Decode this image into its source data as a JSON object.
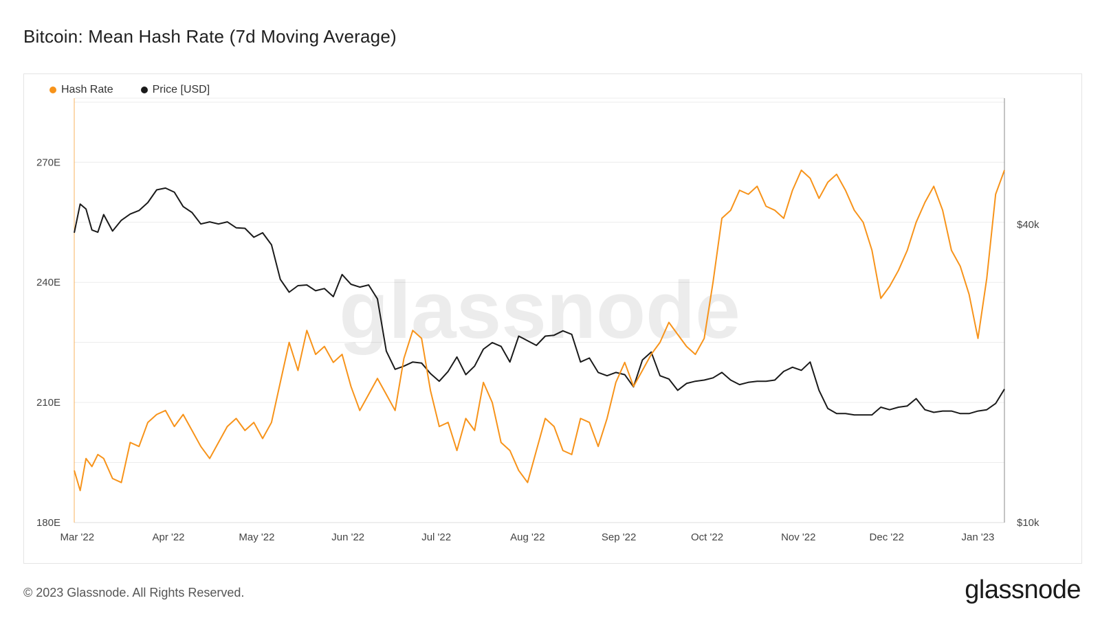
{
  "title": "Bitcoin: Mean Hash Rate (7d Moving Average)",
  "footer": "© 2023 Glassnode. All Rights Reserved.",
  "brand": "glassnode",
  "watermark": "glassnode",
  "colors": {
    "hash_rate": "#F7931A",
    "price": "#1a1a1a",
    "grid": "#ececec"
  },
  "chart_data": {
    "type": "line",
    "title": "Bitcoin: Mean Hash Rate (7d Moving Average)",
    "x_ticks": [
      "Mar '22",
      "Apr '22",
      "May '22",
      "Jun '22",
      "Jul '22",
      "Aug '22",
      "Sep '22",
      "Oct '22",
      "Nov '22",
      "Dec '22",
      "Jan '23"
    ],
    "y_left": {
      "ticks": [
        "180E",
        "210E",
        "240E",
        "270E"
      ],
      "range": [
        180,
        286
      ]
    },
    "y_right": {
      "ticks": [
        "$10k",
        "$40k"
      ],
      "scale": "log",
      "range": [
        10000,
        72000
      ]
    },
    "grid": true,
    "legend_position": "top-left",
    "series": [
      {
        "name": "Hash Rate",
        "axis": "left",
        "x": [
          "2022-02-28",
          "2022-03-02",
          "2022-03-04",
          "2022-03-06",
          "2022-03-08",
          "2022-03-10",
          "2022-03-13",
          "2022-03-16",
          "2022-03-19",
          "2022-03-22",
          "2022-03-25",
          "2022-03-28",
          "2022-03-31",
          "2022-04-03",
          "2022-04-06",
          "2022-04-09",
          "2022-04-12",
          "2022-04-15",
          "2022-04-18",
          "2022-04-21",
          "2022-04-24",
          "2022-04-27",
          "2022-04-30",
          "2022-05-03",
          "2022-05-06",
          "2022-05-09",
          "2022-05-12",
          "2022-05-15",
          "2022-05-18",
          "2022-05-21",
          "2022-05-24",
          "2022-05-27",
          "2022-05-30",
          "2022-06-02",
          "2022-06-05",
          "2022-06-08",
          "2022-06-11",
          "2022-06-14",
          "2022-06-17",
          "2022-06-20",
          "2022-06-23",
          "2022-06-26",
          "2022-06-29",
          "2022-07-02",
          "2022-07-05",
          "2022-07-08",
          "2022-07-11",
          "2022-07-14",
          "2022-07-17",
          "2022-07-20",
          "2022-07-23",
          "2022-07-26",
          "2022-07-29",
          "2022-08-01",
          "2022-08-04",
          "2022-08-07",
          "2022-08-10",
          "2022-08-13",
          "2022-08-16",
          "2022-08-19",
          "2022-08-22",
          "2022-08-25",
          "2022-08-28",
          "2022-08-31",
          "2022-09-03",
          "2022-09-06",
          "2022-09-09",
          "2022-09-12",
          "2022-09-15",
          "2022-09-18",
          "2022-09-21",
          "2022-09-24",
          "2022-09-27",
          "2022-09-30",
          "2022-10-03",
          "2022-10-06",
          "2022-10-09",
          "2022-10-12",
          "2022-10-15",
          "2022-10-18",
          "2022-10-21",
          "2022-10-24",
          "2022-10-27",
          "2022-10-30",
          "2022-11-02",
          "2022-11-05",
          "2022-11-08",
          "2022-11-11",
          "2022-11-14",
          "2022-11-17",
          "2022-11-20",
          "2022-11-23",
          "2022-11-26",
          "2022-11-29",
          "2022-12-02",
          "2022-12-05",
          "2022-12-08",
          "2022-12-11",
          "2022-12-14",
          "2022-12-17",
          "2022-12-20",
          "2022-12-23",
          "2022-12-26",
          "2022-12-29",
          "2023-01-01",
          "2023-01-04",
          "2023-01-07",
          "2023-01-10"
        ],
        "values": [
          193,
          188,
          196,
          194,
          197,
          196,
          191,
          190,
          200,
          199,
          205,
          207,
          208,
          204,
          207,
          203,
          199,
          196,
          200,
          204,
          206,
          203,
          205,
          201,
          205,
          215,
          225,
          218,
          228,
          222,
          224,
          220,
          222,
          214,
          208,
          212,
          216,
          212,
          208,
          221,
          228,
          226,
          213,
          204,
          205,
          198,
          206,
          203,
          215,
          210,
          200,
          198,
          193,
          190,
          198,
          206,
          204,
          198,
          197,
          206,
          205,
          199,
          206,
          215,
          220,
          214,
          218,
          222,
          225,
          230,
          227,
          224,
          222,
          226,
          240,
          256,
          258,
          263,
          262,
          264,
          259,
          258,
          256,
          263,
          268,
          266,
          261,
          265,
          267,
          263,
          258,
          255,
          248,
          236,
          239,
          243,
          248,
          255,
          260,
          264,
          258,
          248,
          244,
          237,
          226,
          241,
          262,
          268
        ]
      },
      {
        "name": "Price [USD]",
        "axis": "right",
        "x": [
          "2022-02-28",
          "2022-03-02",
          "2022-03-04",
          "2022-03-06",
          "2022-03-08",
          "2022-03-10",
          "2022-03-13",
          "2022-03-16",
          "2022-03-19",
          "2022-03-22",
          "2022-03-25",
          "2022-03-28",
          "2022-03-31",
          "2022-04-03",
          "2022-04-06",
          "2022-04-09",
          "2022-04-12",
          "2022-04-15",
          "2022-04-18",
          "2022-04-21",
          "2022-04-24",
          "2022-04-27",
          "2022-04-30",
          "2022-05-03",
          "2022-05-06",
          "2022-05-09",
          "2022-05-12",
          "2022-05-15",
          "2022-05-18",
          "2022-05-21",
          "2022-05-24",
          "2022-05-27",
          "2022-05-30",
          "2022-06-02",
          "2022-06-05",
          "2022-06-08",
          "2022-06-11",
          "2022-06-14",
          "2022-06-17",
          "2022-06-20",
          "2022-06-23",
          "2022-06-26",
          "2022-06-29",
          "2022-07-02",
          "2022-07-05",
          "2022-07-08",
          "2022-07-11",
          "2022-07-14",
          "2022-07-17",
          "2022-07-20",
          "2022-07-23",
          "2022-07-26",
          "2022-07-29",
          "2022-08-01",
          "2022-08-04",
          "2022-08-07",
          "2022-08-10",
          "2022-08-13",
          "2022-08-16",
          "2022-08-19",
          "2022-08-22",
          "2022-08-25",
          "2022-08-28",
          "2022-08-31",
          "2022-09-03",
          "2022-09-06",
          "2022-09-09",
          "2022-09-12",
          "2022-09-15",
          "2022-09-18",
          "2022-09-21",
          "2022-09-24",
          "2022-09-27",
          "2022-09-30",
          "2022-10-03",
          "2022-10-06",
          "2022-10-09",
          "2022-10-12",
          "2022-10-15",
          "2022-10-18",
          "2022-10-21",
          "2022-10-24",
          "2022-10-27",
          "2022-10-30",
          "2022-11-02",
          "2022-11-05",
          "2022-11-08",
          "2022-11-11",
          "2022-11-14",
          "2022-11-17",
          "2022-11-20",
          "2022-11-23",
          "2022-11-26",
          "2022-11-29",
          "2022-12-02",
          "2022-12-05",
          "2022-12-08",
          "2022-12-11",
          "2022-12-14",
          "2022-12-17",
          "2022-12-20",
          "2022-12-23",
          "2022-12-26",
          "2022-12-29",
          "2023-01-01",
          "2023-01-04",
          "2023-01-07",
          "2023-01-10"
        ],
        "values": [
          38500,
          44000,
          43000,
          39000,
          38600,
          41900,
          38800,
          40800,
          42000,
          42700,
          44300,
          47000,
          47400,
          46500,
          43500,
          42300,
          40100,
          40500,
          40100,
          40500,
          39400,
          39300,
          37700,
          38500,
          36400,
          31000,
          29200,
          30100,
          30200,
          29400,
          29700,
          28600,
          31700,
          30300,
          29900,
          30200,
          28300,
          22200,
          20400,
          20700,
          21100,
          21000,
          20000,
          19300,
          20200,
          21600,
          19900,
          20700,
          22400,
          23100,
          22700,
          21100,
          23800,
          23300,
          22800,
          23800,
          23900,
          24400,
          24000,
          21100,
          21500,
          20100,
          19800,
          20100,
          19900,
          18800,
          21300,
          22100,
          19800,
          19500,
          18500,
          19100,
          19300,
          19400,
          19600,
          20100,
          19400,
          19000,
          19200,
          19300,
          19300,
          19400,
          20200,
          20600,
          20300,
          21100,
          18500,
          17000,
          16600,
          16600,
          16500,
          16500,
          16500,
          17100,
          16900,
          17100,
          17200,
          17800,
          16900,
          16700,
          16800,
          16800,
          16600,
          16600,
          16800,
          16900,
          17400,
          18600
        ]
      }
    ]
  }
}
